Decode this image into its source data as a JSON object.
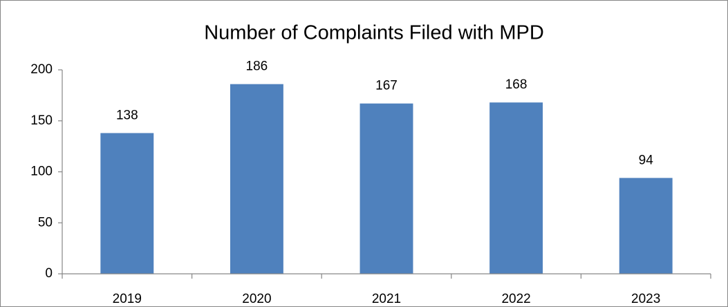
{
  "chart_data": {
    "type": "bar",
    "title": "Number of Complaints Filed with MPD",
    "categories": [
      "2019",
      "2020",
      "2021",
      "2022",
      "2023"
    ],
    "values": [
      138,
      186,
      167,
      168,
      94
    ],
    "color": "#4f81bd",
    "ylim": [
      0,
      200
    ],
    "yticks": [
      0,
      50,
      100,
      150,
      200
    ],
    "grid": false,
    "data_labels": true
  }
}
